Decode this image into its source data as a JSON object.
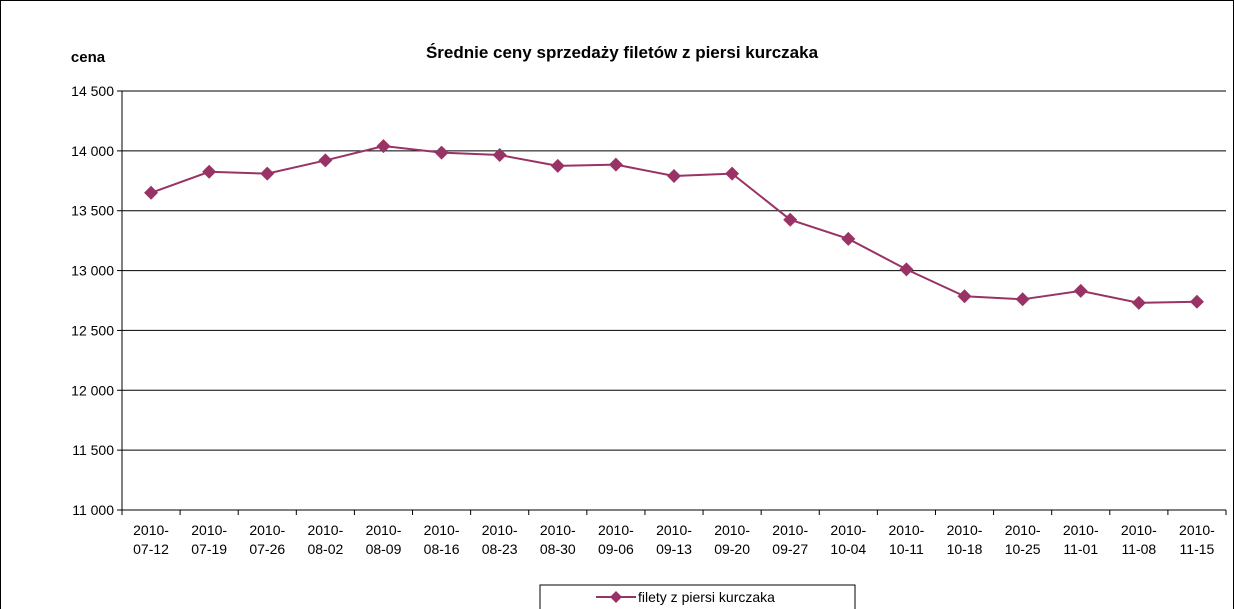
{
  "chart_data": {
    "type": "line",
    "title": "Średnie ceny sprzedaży filetów z piersi kurczaka",
    "y_label": "cena",
    "categories": [
      "2010-07-12",
      "2010-07-19",
      "2010-07-26",
      "2010-08-02",
      "2010-08-09",
      "2010-08-16",
      "2010-08-23",
      "2010-08-30",
      "2010-09-06",
      "2010-09-13",
      "2010-09-20",
      "2010-09-27",
      "2010-10-04",
      "2010-10-11",
      "2010-10-18",
      "2010-10-25",
      "2010-11-01",
      "2010-11-08",
      "2010-11-15"
    ],
    "series": [
      {
        "name": "filety z piersi kurczaka",
        "color": "#993366",
        "values": [
          13650,
          13825,
          13810,
          13920,
          14040,
          13985,
          13965,
          13875,
          13885,
          13790,
          13810,
          13425,
          13265,
          13010,
          12785,
          12760,
          12830,
          12730,
          12740
        ]
      }
    ],
    "ylim": [
      11000,
      14500
    ],
    "yticks": [
      {
        "value": 11000,
        "label": "11 000"
      },
      {
        "value": 11500,
        "label": "11 500"
      },
      {
        "value": 12000,
        "label": "12 000"
      },
      {
        "value": 12500,
        "label": "12 500"
      },
      {
        "value": 13000,
        "label": "13 000"
      },
      {
        "value": 13500,
        "label": "13 500"
      },
      {
        "value": 14000,
        "label": "14 000"
      },
      {
        "value": 14500,
        "label": "14 500"
      }
    ],
    "grid": true,
    "legend": "bottom"
  }
}
